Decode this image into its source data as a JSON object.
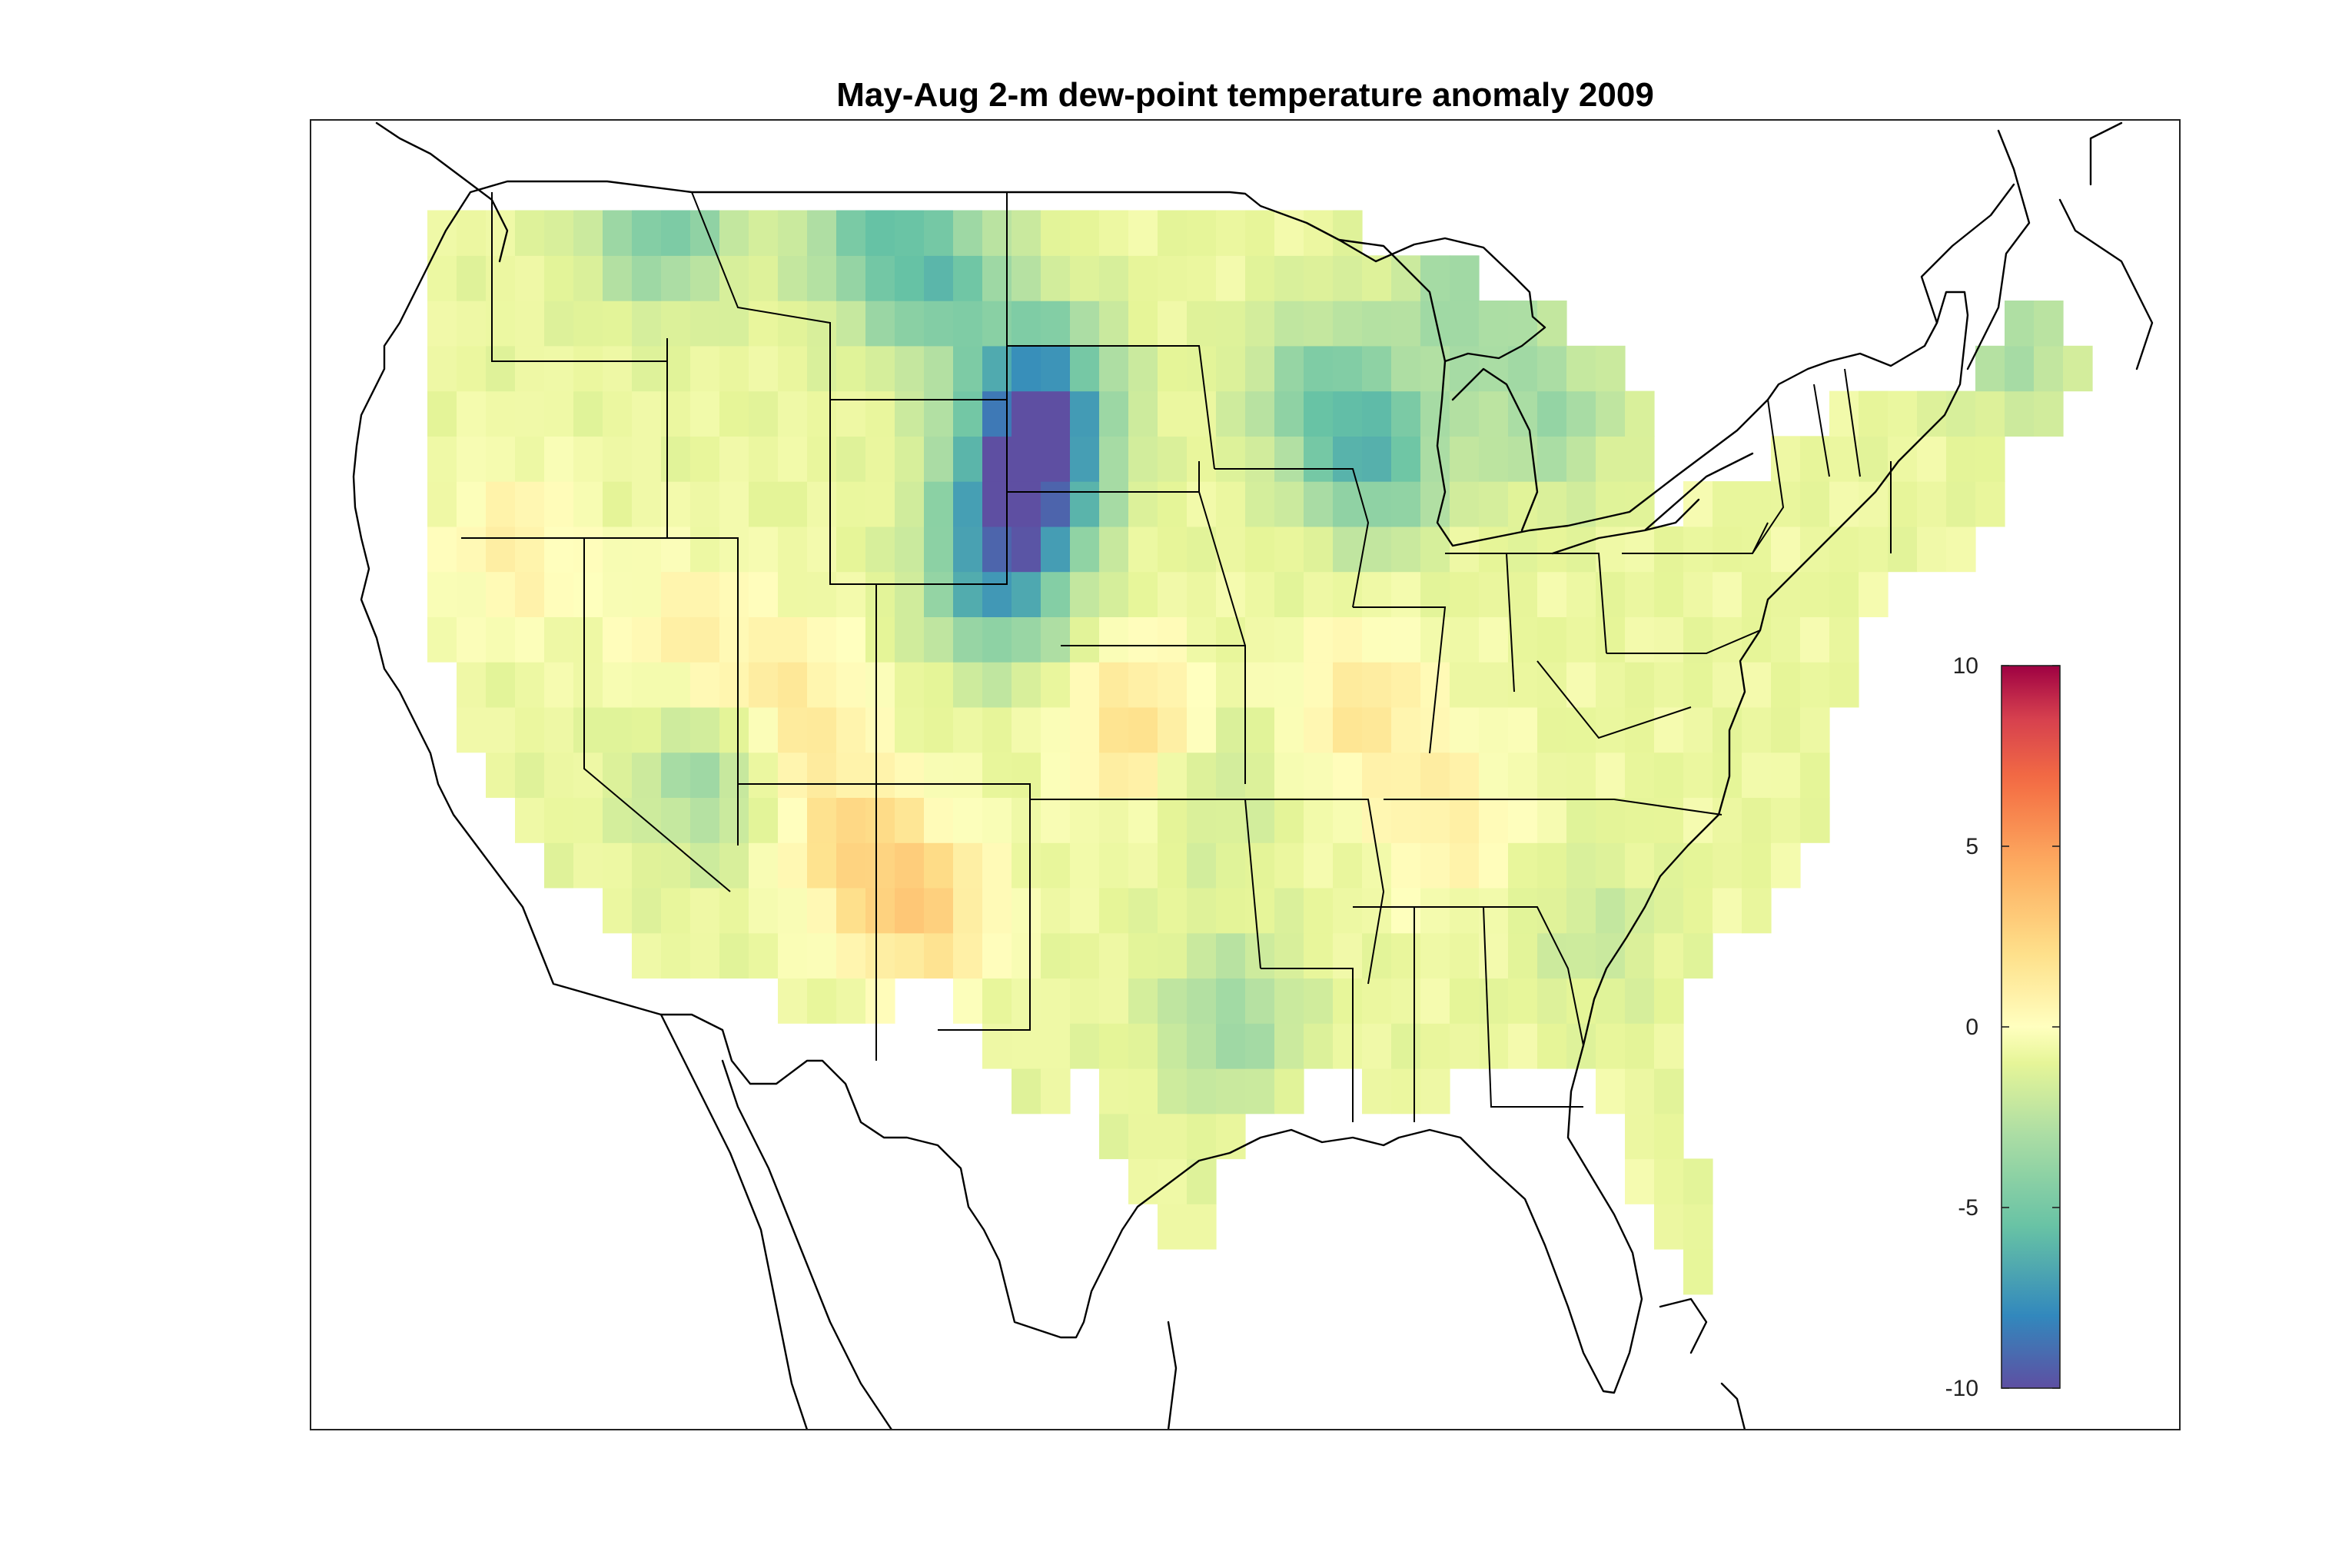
{
  "map": {
    "title": "May-Aug 2-m dew-point temperature anomaly 2009",
    "projection": "equidistant",
    "extent": {
      "lon": [
        -128,
        -64
      ],
      "lat": [
        22,
        51
      ]
    },
    "colormap": "spectral",
    "colorbar": {
      "min": -10,
      "max": 10,
      "ticks": [
        10,
        5,
        0,
        -5,
        -10
      ],
      "tick_labels": [
        "10",
        "5",
        "0",
        "-5",
        "-10"
      ],
      "placement": "inside-right"
    }
  },
  "chart_data": {
    "type": "heatmap",
    "title": "May-Aug 2-m dew-point temperature anomaly 2009",
    "variable": "2-m dew-point temperature anomaly",
    "season": "May-Aug",
    "year": 2009,
    "grid_resolution_deg": 1,
    "value_range": [
      -10,
      10
    ],
    "anomaly_centers": [
      {
        "lon": -103.5,
        "lat": 43.0,
        "value": -9.5
      },
      {
        "lon": -103.0,
        "lat": 45.0,
        "value": -7.0
      },
      {
        "lon": -104.5,
        "lat": 40.8,
        "value": -6.5
      },
      {
        "lon": -106.5,
        "lat": 47.5,
        "value": -5.0
      },
      {
        "lon": -109.0,
        "lat": 48.5,
        "value": -4.0
      },
      {
        "lon": -116.0,
        "lat": 48.8,
        "value": -5.0
      },
      {
        "lon": -91.5,
        "lat": 43.5,
        "value": -5.5
      },
      {
        "lon": -93.5,
        "lat": 45.0,
        "value": -4.0
      },
      {
        "lon": -85.5,
        "lat": 44.5,
        "value": -3.5
      },
      {
        "lon": -88.5,
        "lat": 47.0,
        "value": -3.5
      },
      {
        "lon": -69.5,
        "lat": 46.0,
        "value": -3.0
      },
      {
        "lon": -114.5,
        "lat": 36.5,
        "value": -3.5
      },
      {
        "lon": -96.5,
        "lat": 31.0,
        "value": -3.5
      },
      {
        "lon": -97.5,
        "lat": 36.5,
        "value": -2.5
      },
      {
        "lon": -84.0,
        "lat": 33.0,
        "value": -2.0
      },
      {
        "lon": -107.0,
        "lat": 33.5,
        "value": 2.5
      },
      {
        "lon": -109.5,
        "lat": 35.0,
        "value": 2.0
      },
      {
        "lon": -111.5,
        "lat": 38.0,
        "value": 1.5
      },
      {
        "lon": -99.5,
        "lat": 37.5,
        "value": 2.5
      },
      {
        "lon": -92.0,
        "lat": 38.0,
        "value": 1.5
      },
      {
        "lon": -89.0,
        "lat": 35.5,
        "value": 1.0
      },
      {
        "lon": -115.0,
        "lat": 39.5,
        "value": 1.0
      },
      {
        "lon": -121.0,
        "lat": 41.5,
        "value": 1.0
      }
    ],
    "background_anomaly": -0.8
  }
}
